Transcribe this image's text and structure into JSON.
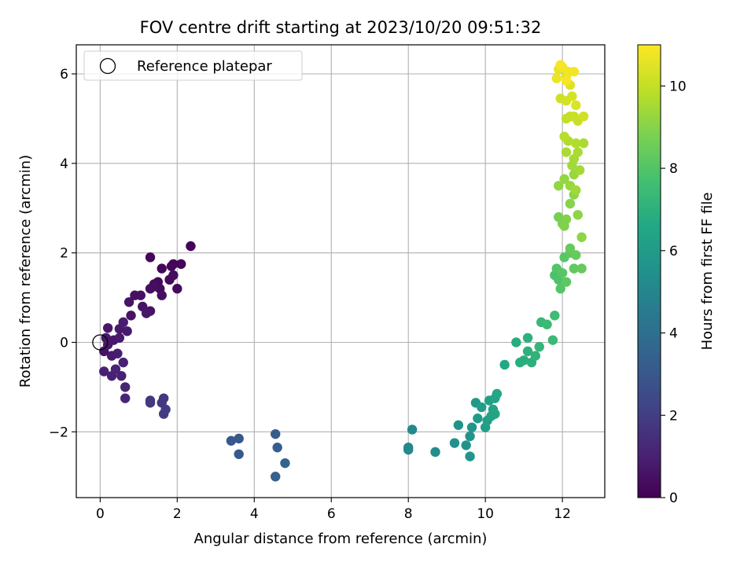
{
  "chart_data": {
    "type": "scatter",
    "title": "FOV centre drift starting at 2023/10/20 09:51:32",
    "xlabel": "Angular distance from reference (arcmin)",
    "ylabel": "Rotation from reference (arcmin)",
    "xlim": [
      -0.62,
      13.1
    ],
    "ylim": [
      -3.47,
      6.65
    ],
    "xticks": [
      0,
      2,
      4,
      6,
      8,
      10,
      12
    ],
    "xtick_labels": [
      "0",
      "2",
      "4",
      "6",
      "8",
      "10",
      "12"
    ],
    "yticks": [
      -2,
      0,
      2,
      4,
      6
    ],
    "ytick_labels": [
      "−2",
      "0",
      "2",
      "4",
      "6"
    ],
    "grid": true,
    "legend": {
      "location": "upper-left",
      "entries": [
        {
          "label": "Reference platepar",
          "marker": "open-circle",
          "x": 0,
          "y": 0
        }
      ]
    },
    "colorbar": {
      "label": "Hours from first FF file",
      "min": 0,
      "max": 11,
      "ticks": [
        0,
        2,
        4,
        6,
        8,
        10
      ],
      "tick_labels": [
        "0",
        "2",
        "4",
        "6",
        "8",
        "10"
      ],
      "colormap": "viridis"
    },
    "reference_point": {
      "x": 0,
      "y": 0
    },
    "series": [
      {
        "columns": [
          "x",
          "y",
          "hours"
        ],
        "points": [
          [
            0.1,
            -0.2,
            0.6
          ],
          [
            0.2,
            -0.05,
            0.7
          ],
          [
            0.35,
            0.05,
            0.7
          ],
          [
            0.5,
            0.1,
            0.8
          ],
          [
            0.3,
            -0.3,
            0.8
          ],
          [
            0.2,
            0.32,
            0.7
          ],
          [
            0.5,
            0.3,
            0.8
          ],
          [
            0.6,
            0.45,
            0.9
          ],
          [
            0.7,
            0.25,
            0.8
          ],
          [
            0.45,
            -0.25,
            0.9
          ],
          [
            0.6,
            -0.45,
            1.0
          ],
          [
            0.55,
            -0.75,
            1.0
          ],
          [
            0.3,
            -0.75,
            1.0
          ],
          [
            0.1,
            -0.65,
            1.0
          ],
          [
            0.4,
            -0.6,
            1.1
          ],
          [
            0.65,
            -1.0,
            1.1
          ],
          [
            0.65,
            -1.25,
            1.1
          ],
          [
            0.15,
            0.1,
            0.7
          ],
          [
            0.8,
            0.6,
            0.6
          ],
          [
            0.75,
            0.9,
            0.6
          ],
          [
            0.9,
            1.05,
            0.5
          ],
          [
            1.05,
            1.05,
            0.5
          ],
          [
            1.1,
            0.8,
            0.6
          ],
          [
            1.3,
            0.7,
            0.6
          ],
          [
            1.2,
            0.65,
            0.7
          ],
          [
            1.3,
            1.2,
            0.4
          ],
          [
            1.4,
            1.3,
            0.4
          ],
          [
            1.55,
            1.2,
            0.3
          ],
          [
            1.6,
            1.05,
            0.4
          ],
          [
            1.5,
            1.35,
            0.3
          ],
          [
            1.6,
            1.65,
            0.2
          ],
          [
            1.8,
            1.4,
            0.3
          ],
          [
            1.85,
            1.7,
            0.2
          ],
          [
            1.9,
            1.5,
            0.3
          ],
          [
            1.9,
            1.75,
            0.2
          ],
          [
            2.0,
            1.2,
            0.3
          ],
          [
            1.3,
            1.9,
            0.2
          ],
          [
            2.1,
            1.75,
            0.2
          ],
          [
            2.35,
            2.15,
            0.1
          ],
          [
            1.4,
            1.25,
            0.4
          ],
          [
            1.3,
            -1.3,
            1.7
          ],
          [
            1.3,
            -1.35,
            1.8
          ],
          [
            1.6,
            -1.35,
            1.8
          ],
          [
            1.65,
            -1.25,
            1.8
          ],
          [
            1.7,
            -1.5,
            1.9
          ],
          [
            1.65,
            -1.6,
            1.9
          ],
          [
            3.4,
            -2.2,
            3.0
          ],
          [
            3.6,
            -2.15,
            3.0
          ],
          [
            3.6,
            -2.5,
            3.1
          ],
          [
            4.55,
            -2.05,
            3.2
          ],
          [
            4.6,
            -2.35,
            3.3
          ],
          [
            4.8,
            -2.7,
            3.5
          ],
          [
            4.55,
            -3.0,
            3.4
          ],
          [
            8.0,
            -2.35,
            5.0
          ],
          [
            8.1,
            -1.95,
            5.1
          ],
          [
            8.0,
            -2.4,
            5.1
          ],
          [
            8.7,
            -2.45,
            5.3
          ],
          [
            9.2,
            -2.25,
            5.5
          ],
          [
            9.3,
            -1.85,
            5.6
          ],
          [
            9.5,
            -2.3,
            5.6
          ],
          [
            9.6,
            -2.55,
            5.7
          ],
          [
            9.6,
            -2.1,
            5.7
          ],
          [
            9.65,
            -1.9,
            5.8
          ],
          [
            9.75,
            -1.35,
            5.9
          ],
          [
            9.8,
            -1.7,
            6.0
          ],
          [
            9.9,
            -1.45,
            6.1
          ],
          [
            10.0,
            -1.9,
            6.2
          ],
          [
            10.05,
            -1.75,
            6.2
          ],
          [
            10.1,
            -1.3,
            6.2
          ],
          [
            10.15,
            -1.65,
            6.3
          ],
          [
            10.2,
            -1.5,
            6.3
          ],
          [
            10.25,
            -1.25,
            6.4
          ],
          [
            10.25,
            -1.6,
            6.4
          ],
          [
            10.3,
            -1.15,
            6.5
          ],
          [
            10.5,
            -0.5,
            6.6
          ],
          [
            10.8,
            0.0,
            6.8
          ],
          [
            10.9,
            -0.45,
            6.8
          ],
          [
            11.0,
            -0.4,
            6.9
          ],
          [
            11.1,
            -0.2,
            7.0
          ],
          [
            11.1,
            0.1,
            7.0
          ],
          [
            11.2,
            -0.45,
            7.0
          ],
          [
            11.3,
            -0.3,
            7.1
          ],
          [
            11.4,
            -0.1,
            7.2
          ],
          [
            11.45,
            0.45,
            7.3
          ],
          [
            11.6,
            0.4,
            7.4
          ],
          [
            11.75,
            0.05,
            7.4
          ],
          [
            11.8,
            0.6,
            7.5
          ],
          [
            11.8,
            1.5,
            7.8
          ],
          [
            11.9,
            1.4,
            7.9
          ],
          [
            11.85,
            1.65,
            8.0
          ],
          [
            11.95,
            1.2,
            8.0
          ],
          [
            12.0,
            1.55,
            8.1
          ],
          [
            12.05,
            1.9,
            8.1
          ],
          [
            12.1,
            1.35,
            8.2
          ],
          [
            12.2,
            2.0,
            8.2
          ],
          [
            12.3,
            1.65,
            8.3
          ],
          [
            12.35,
            1.95,
            8.4
          ],
          [
            12.5,
            1.65,
            8.4
          ],
          [
            12.2,
            2.1,
            8.4
          ],
          [
            11.9,
            2.8,
            8.7
          ],
          [
            12.0,
            2.65,
            8.8
          ],
          [
            12.05,
            2.6,
            8.9
          ],
          [
            12.1,
            2.75,
            8.9
          ],
          [
            12.2,
            3.1,
            9.0
          ],
          [
            12.3,
            3.3,
            9.1
          ],
          [
            12.4,
            2.85,
            9.1
          ],
          [
            12.5,
            2.35,
            9.1
          ],
          [
            11.9,
            3.5,
            9.2
          ],
          [
            12.05,
            3.65,
            9.2
          ],
          [
            12.2,
            3.5,
            9.3
          ],
          [
            12.3,
            3.75,
            9.3
          ],
          [
            12.35,
            3.4,
            9.4
          ],
          [
            12.25,
            3.95,
            9.4
          ],
          [
            12.45,
            3.85,
            9.5
          ],
          [
            12.3,
            4.1,
            9.5
          ],
          [
            12.4,
            4.25,
            9.6
          ],
          [
            12.55,
            4.45,
            9.6
          ],
          [
            12.1,
            4.25,
            9.6
          ],
          [
            12.15,
            4.5,
            9.7
          ],
          [
            12.35,
            4.45,
            9.7
          ],
          [
            12.05,
            4.6,
            9.8
          ],
          [
            12.1,
            5.0,
            10.0
          ],
          [
            12.2,
            5.05,
            10.0
          ],
          [
            12.3,
            5.05,
            10.1
          ],
          [
            12.4,
            4.95,
            10.1
          ],
          [
            12.55,
            5.05,
            10.2
          ],
          [
            11.95,
            5.45,
            10.2
          ],
          [
            12.1,
            5.4,
            10.3
          ],
          [
            12.25,
            5.5,
            10.3
          ],
          [
            12.35,
            5.3,
            10.4
          ],
          [
            12.2,
            5.75,
            10.5
          ],
          [
            12.1,
            5.95,
            10.5
          ],
          [
            11.9,
            6.1,
            10.6
          ],
          [
            12.0,
            6.15,
            10.7
          ],
          [
            12.15,
            6.05,
            10.8
          ],
          [
            12.3,
            6.05,
            10.8
          ],
          [
            11.85,
            5.9,
            10.7
          ],
          [
            11.95,
            6.2,
            10.9
          ],
          [
            12.1,
            5.85,
            10.9
          ]
        ]
      }
    ]
  }
}
